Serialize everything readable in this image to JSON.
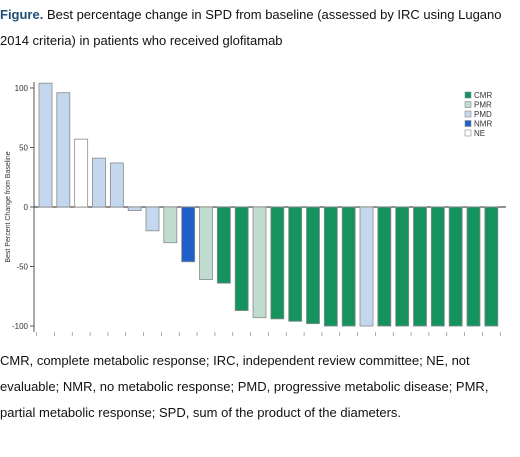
{
  "caption": {
    "label": "Figure.",
    "text": " Best percentage change in SPD from baseline (assessed by IRC using Lugano 2014 criteria) in patients who received glofitamab"
  },
  "footnote": "CMR, complete metabolic response; IRC, independent review committee; NE, not evaluable; NMR, no metabolic response; PMD, progressive metabolic disease; PMR, partial metabolic response; SPD, sum of the product of the diameters.",
  "colors": {
    "CMR": "#15935e",
    "PMR": "#bfdccf",
    "PMD": "#c3d7ee",
    "NMR": "#1f5fc7",
    "NE": "#ffffff"
  },
  "chart_data": {
    "type": "bar",
    "title": "",
    "xlabel": "",
    "ylabel": "Best Percent Change from Baseline",
    "ylim": [
      -105,
      105
    ],
    "yticks": [
      100,
      50,
      0,
      -50,
      -100
    ],
    "grid": false,
    "legend": {
      "placement": "top-right",
      "entries": [
        "CMR",
        "PMR",
        "PMD",
        "NMR",
        "NE"
      ]
    },
    "values": [
      104,
      96,
      57,
      41,
      37,
      -3,
      -20,
      -30,
      -46,
      -61,
      -64,
      -87,
      -93,
      -94,
      -96,
      -98,
      -100,
      -100,
      -100,
      -100,
      -100,
      -100,
      -100,
      -100,
      -100,
      -100
    ],
    "categories_response": [
      "PMD",
      "PMD",
      "NE",
      "PMD",
      "PMD",
      "PMD",
      "PMD",
      "PMR",
      "NMR",
      "PMR",
      "CMR",
      "CMR",
      "PMR",
      "CMR",
      "CMR",
      "CMR",
      "CMR",
      "CMR",
      "PMD",
      "CMR",
      "CMR",
      "CMR",
      "CMR",
      "CMR",
      "CMR",
      "CMR"
    ]
  }
}
